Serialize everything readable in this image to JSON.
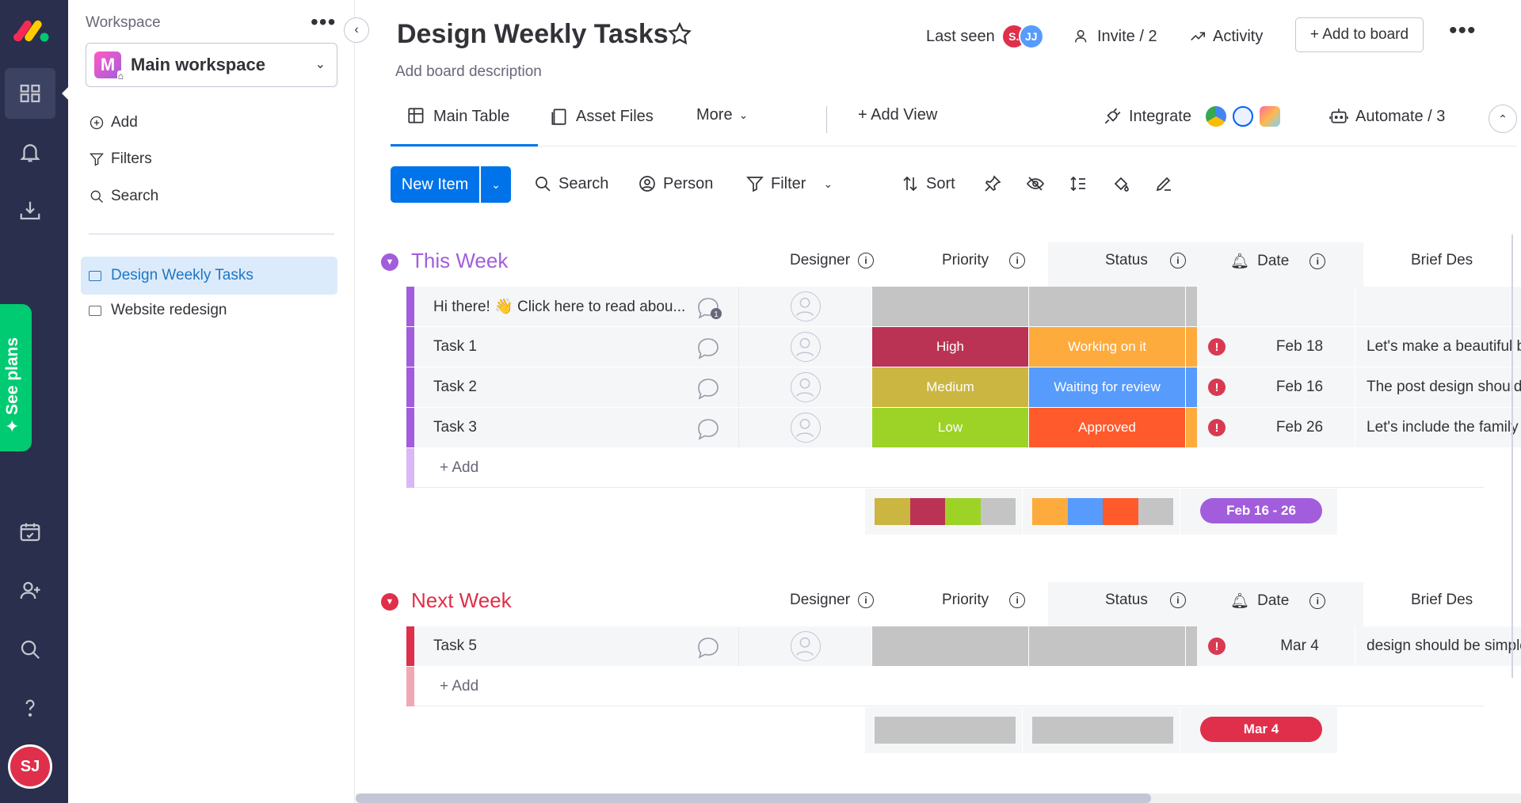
{
  "rail": {
    "avatar_initials": "SJ",
    "see_plans": "See plans"
  },
  "sidebar": {
    "workspace_label": "Workspace",
    "workspace_badge": "M",
    "workspace_name": "Main workspace",
    "add": "Add",
    "filters": "Filters",
    "search": "Search",
    "boards": [
      {
        "label": "Design Weekly Tasks",
        "active": true
      },
      {
        "label": "Website redesign",
        "active": false
      }
    ]
  },
  "header": {
    "title": "Design Weekly Tasks",
    "description": "Add board description",
    "last_seen": "Last seen",
    "avatars": [
      {
        "initials": "S.",
        "color": "#df2f4a"
      },
      {
        "initials": "JJ",
        "color": "#579bfc"
      }
    ],
    "invite": "Invite / 2",
    "activity": "Activity",
    "add_to_board": "+ Add to board"
  },
  "tabs": {
    "main_table": "Main Table",
    "asset_files": "Asset Files",
    "more": "More",
    "add_view": "+ Add View",
    "integrate": "Integrate",
    "automate": "Automate / 3"
  },
  "toolbar": {
    "new_item": "New Item",
    "search": "Search",
    "person": "Person",
    "filter": "Filter",
    "sort": "Sort"
  },
  "columns": {
    "designer": "Designer",
    "priority": "Priority",
    "status": "Status",
    "date": "Date",
    "brief": "Brief Des"
  },
  "groups": [
    {
      "title": "This Week",
      "color": "#a25ddc",
      "light": "#d9b8f5",
      "rows": [
        {
          "name": "Hi there! 👋 Click here to read abou...",
          "priority": "",
          "priority_color": "#c4c4c4",
          "status": "",
          "status_color": "#c4c4c4",
          "edge_color": "#c4c4c4",
          "date": "",
          "alert": false,
          "brief": "",
          "bubble_count": "1"
        },
        {
          "name": "Task 1",
          "priority": "High",
          "priority_color": "#bb3354",
          "status": "Working on it",
          "status_color": "#fdab3d",
          "edge_color": "#fdab3d",
          "date": "Feb 18",
          "alert": true,
          "brief": "Let's make a beautiful ba",
          "bubble_count": ""
        },
        {
          "name": "Task 2",
          "priority": "Medium",
          "priority_color": "#cab641",
          "status": "Waiting for review",
          "status_color": "#579bfc",
          "edge_color": "#579bfc",
          "date": "Feb 16",
          "alert": true,
          "brief": "The post design should h",
          "bubble_count": ""
        },
        {
          "name": "Task 3",
          "priority": "Low",
          "priority_color": "#9cd326",
          "status": "Approved",
          "status_color": "#ff5a2c",
          "edge_color": "#fdab3d",
          "date": "Feb 26",
          "alert": true,
          "brief": "Let's include the family d",
          "bubble_count": ""
        }
      ],
      "add_label": "+ Add",
      "summary_date": "Feb 16 - 26",
      "summary_priority": [
        "#cab641",
        "#bb3354",
        "#9cd326",
        "#c4c4c4"
      ],
      "summary_status": [
        "#fdab3d",
        "#579bfc",
        "#ff5a2c",
        "#c4c4c4"
      ]
    },
    {
      "title": "Next Week",
      "color": "#df2f4a",
      "light": "#f1a8b5",
      "rows": [
        {
          "name": "Task 5",
          "priority": "",
          "priority_color": "#c4c4c4",
          "status": "",
          "status_color": "#c4c4c4",
          "edge_color": "#c4c4c4",
          "date": "Mar 4",
          "alert": true,
          "brief": "design should be simple",
          "bubble_count": ""
        }
      ],
      "add_label": "+ Add",
      "summary_date": "Mar 4",
      "summary_priority": [
        "#c4c4c4"
      ],
      "summary_status": [
        "#c4c4c4"
      ]
    }
  ]
}
